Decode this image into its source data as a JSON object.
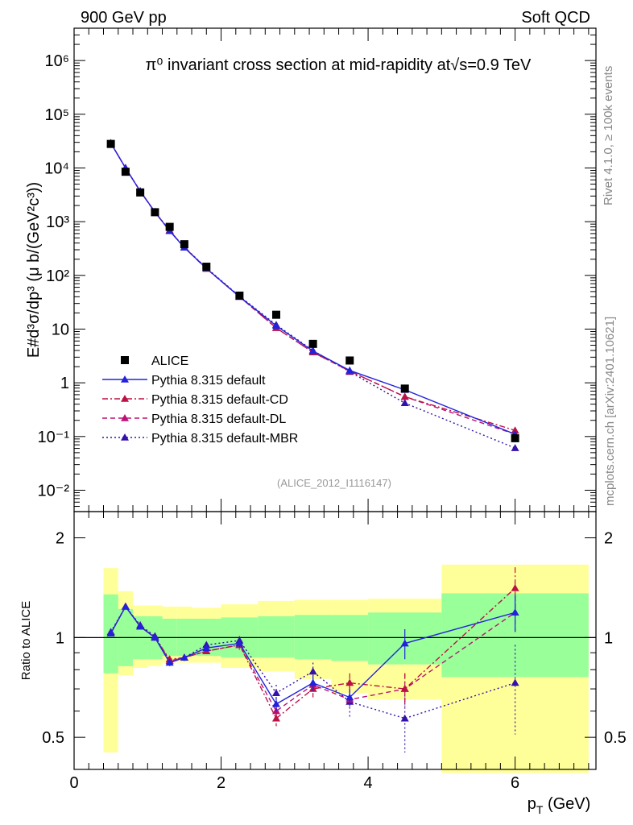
{
  "header": {
    "left": "900 GeV pp",
    "right": "Soft QCD"
  },
  "side_labels": {
    "rivet": "Rivet 4.1.0, ≥ 100k events",
    "source": "mcplots.cern.ch [arXiv:2401.10621]"
  },
  "chart_data": [
    {
      "type": "scatter",
      "panel": "main",
      "title": "π⁰ invariant cross section at mid-rapidity at√s=0.9 TeV",
      "analysis_id": "(ALICE_2012_I1116147)",
      "ylabel": "E#d³σ/dp³ (μ b/(GeV²c³))",
      "yscale": "log",
      "xlim": [
        0,
        7.1
      ],
      "ylim": [
        0.004,
        4000000
      ],
      "y_tick_labels": [
        "10⁻²",
        "10⁻¹",
        "1",
        "10",
        "10²",
        "10³",
        "10⁴",
        "10⁵",
        "10⁶"
      ],
      "x": [
        0.5,
        0.7,
        0.9,
        1.1,
        1.3,
        1.5,
        1.8,
        2.25,
        2.75,
        3.25,
        3.75,
        4.5,
        6.0
      ],
      "series": [
        {
          "name": "ALICE",
          "marker": "square",
          "color": "#000000",
          "values": [
            28000,
            8500,
            3500,
            1500,
            800,
            380,
            145,
            42,
            18.5,
            5.3,
            2.6,
            0.78,
            0.093
          ]
        },
        {
          "name": "Pythia 8.315 default",
          "marker": "triangle",
          "line": "solid",
          "color": "#2222dd",
          "values": [
            29000,
            10000,
            3700,
            1520,
            670,
            330,
            135,
            40,
            11.5,
            3.9,
            1.7,
            0.74,
            0.11
          ]
        },
        {
          "name": "Pythia 8.315 default-CD",
          "marker": "triangle",
          "line": "dashdot",
          "color": "#bb1144",
          "values": [
            29000,
            10000,
            3700,
            1500,
            690,
            330,
            133,
            40,
            10.5,
            3.7,
            1.65,
            0.55,
            0.13
          ]
        },
        {
          "name": "Pythia 8.315 default-DL",
          "marker": "triangle",
          "line": "dashed",
          "color": "#bb1177",
          "values": [
            29000,
            10000,
            3700,
            1500,
            680,
            330,
            133,
            40,
            10.5,
            3.7,
            1.65,
            0.55,
            0.11
          ]
        },
        {
          "name": "Pythia 8.315 default-MBR",
          "marker": "triangle",
          "line": "dotted",
          "color": "#3311aa",
          "values": [
            29000,
            10000,
            3700,
            1520,
            680,
            335,
            138,
            41,
            12.0,
            4.0,
            1.6,
            0.42,
            0.061
          ]
        }
      ]
    },
    {
      "type": "line",
      "panel": "ratio",
      "ylabel": "Ratio to ALICE",
      "xlabel": "p_T (GeV)",
      "yscale": "log",
      "xlim": [
        0,
        7.1
      ],
      "ylim": [
        0.4,
        2.4
      ],
      "x_tick_labels": [
        "0",
        "2",
        "4",
        "6"
      ],
      "y_tick_labels": [
        "0.5",
        "1",
        "2"
      ],
      "bins": [
        {
          "lo": 0.4,
          "hi": 0.6,
          "stat_lo": 0.78,
          "stat_hi": 1.35,
          "tot_lo": 0.45,
          "tot_hi": 1.62
        },
        {
          "lo": 0.6,
          "hi": 0.8,
          "stat_lo": 0.82,
          "stat_hi": 1.22,
          "tot_lo": 0.77,
          "tot_hi": 1.38
        },
        {
          "lo": 0.8,
          "hi": 1.0,
          "stat_lo": 0.86,
          "stat_hi": 1.16,
          "tot_lo": 0.81,
          "tot_hi": 1.25
        },
        {
          "lo": 1.0,
          "hi": 1.2,
          "stat_lo": 0.86,
          "stat_hi": 1.16,
          "tot_lo": 0.82,
          "tot_hi": 1.25
        },
        {
          "lo": 1.2,
          "hi": 1.4,
          "stat_lo": 0.88,
          "stat_hi": 1.14,
          "tot_lo": 0.84,
          "tot_hi": 1.24
        },
        {
          "lo": 1.4,
          "hi": 1.6,
          "stat_lo": 0.88,
          "stat_hi": 1.14,
          "tot_lo": 0.84,
          "tot_hi": 1.24
        },
        {
          "lo": 1.6,
          "hi": 2.0,
          "stat_lo": 0.88,
          "stat_hi": 1.14,
          "tot_lo": 0.84,
          "tot_hi": 1.23
        },
        {
          "lo": 2.0,
          "hi": 2.5,
          "stat_lo": 0.87,
          "stat_hi": 1.15,
          "tot_lo": 0.81,
          "tot_hi": 1.26
        },
        {
          "lo": 2.5,
          "hi": 3.0,
          "stat_lo": 0.87,
          "stat_hi": 1.16,
          "tot_lo": 0.79,
          "tot_hi": 1.29
        },
        {
          "lo": 3.0,
          "hi": 3.5,
          "stat_lo": 0.86,
          "stat_hi": 1.17,
          "tot_lo": 0.75,
          "tot_hi": 1.3
        },
        {
          "lo": 3.5,
          "hi": 4.0,
          "stat_lo": 0.85,
          "stat_hi": 1.17,
          "tot_lo": 0.68,
          "tot_hi": 1.3
        },
        {
          "lo": 4.0,
          "hi": 5.0,
          "stat_lo": 0.83,
          "stat_hi": 1.19,
          "tot_lo": 0.65,
          "tot_hi": 1.31
        },
        {
          "lo": 5.0,
          "hi": 7.0,
          "stat_lo": 0.76,
          "stat_hi": 1.36,
          "tot_lo": 0.39,
          "tot_hi": 1.66
        }
      ],
      "x": [
        0.5,
        0.7,
        0.9,
        1.1,
        1.3,
        1.5,
        1.8,
        2.25,
        2.75,
        3.25,
        3.75,
        4.5,
        6.0
      ],
      "series": [
        {
          "name": "Pythia 8.315 default",
          "line": "solid",
          "color": "#2222dd",
          "values": [
            1.03,
            1.24,
            1.08,
            1.0,
            0.84,
            0.87,
            0.93,
            0.96,
            0.63,
            0.73,
            0.66,
            0.96,
            1.19
          ],
          "err": [
            0.02,
            0.02,
            0.02,
            0.02,
            0.02,
            0.02,
            0.02,
            0.03,
            0.03,
            0.04,
            0.04,
            0.1,
            0.15
          ]
        },
        {
          "name": "Pythia 8.315 default-CD",
          "line": "dashdot",
          "color": "#bb1144",
          "values": [
            1.03,
            1.24,
            1.08,
            1.0,
            0.86,
            0.87,
            0.91,
            0.95,
            0.57,
            0.7,
            0.73,
            0.7,
            1.41
          ],
          "err": [
            0.02,
            0.02,
            0.02,
            0.02,
            0.02,
            0.02,
            0.02,
            0.03,
            0.03,
            0.04,
            0.05,
            0.08,
            0.22
          ]
        },
        {
          "name": "Pythia 8.315 default-DL",
          "line": "dashed",
          "color": "#bb1177",
          "values": [
            1.03,
            1.24,
            1.08,
            1.0,
            0.85,
            0.87,
            0.91,
            0.95,
            0.6,
            0.72,
            0.65,
            0.7,
            1.19
          ],
          "err": [
            0.02,
            0.02,
            0.02,
            0.02,
            0.02,
            0.02,
            0.02,
            0.03,
            0.03,
            0.04,
            0.04,
            0.08,
            0.15
          ]
        },
        {
          "name": "Pythia 8.315 default-MBR",
          "line": "dotted",
          "color": "#3311aa",
          "values": [
            1.04,
            1.24,
            1.09,
            1.01,
            0.85,
            0.87,
            0.95,
            0.98,
            0.68,
            0.79,
            0.64,
            0.57,
            0.73
          ],
          "err": [
            0.02,
            0.02,
            0.02,
            0.02,
            0.02,
            0.02,
            0.02,
            0.03,
            0.04,
            0.05,
            0.07,
            0.12,
            0.22
          ]
        }
      ],
      "band_colors": {
        "stat": "#99ff99",
        "total": "#ffff99"
      }
    }
  ]
}
